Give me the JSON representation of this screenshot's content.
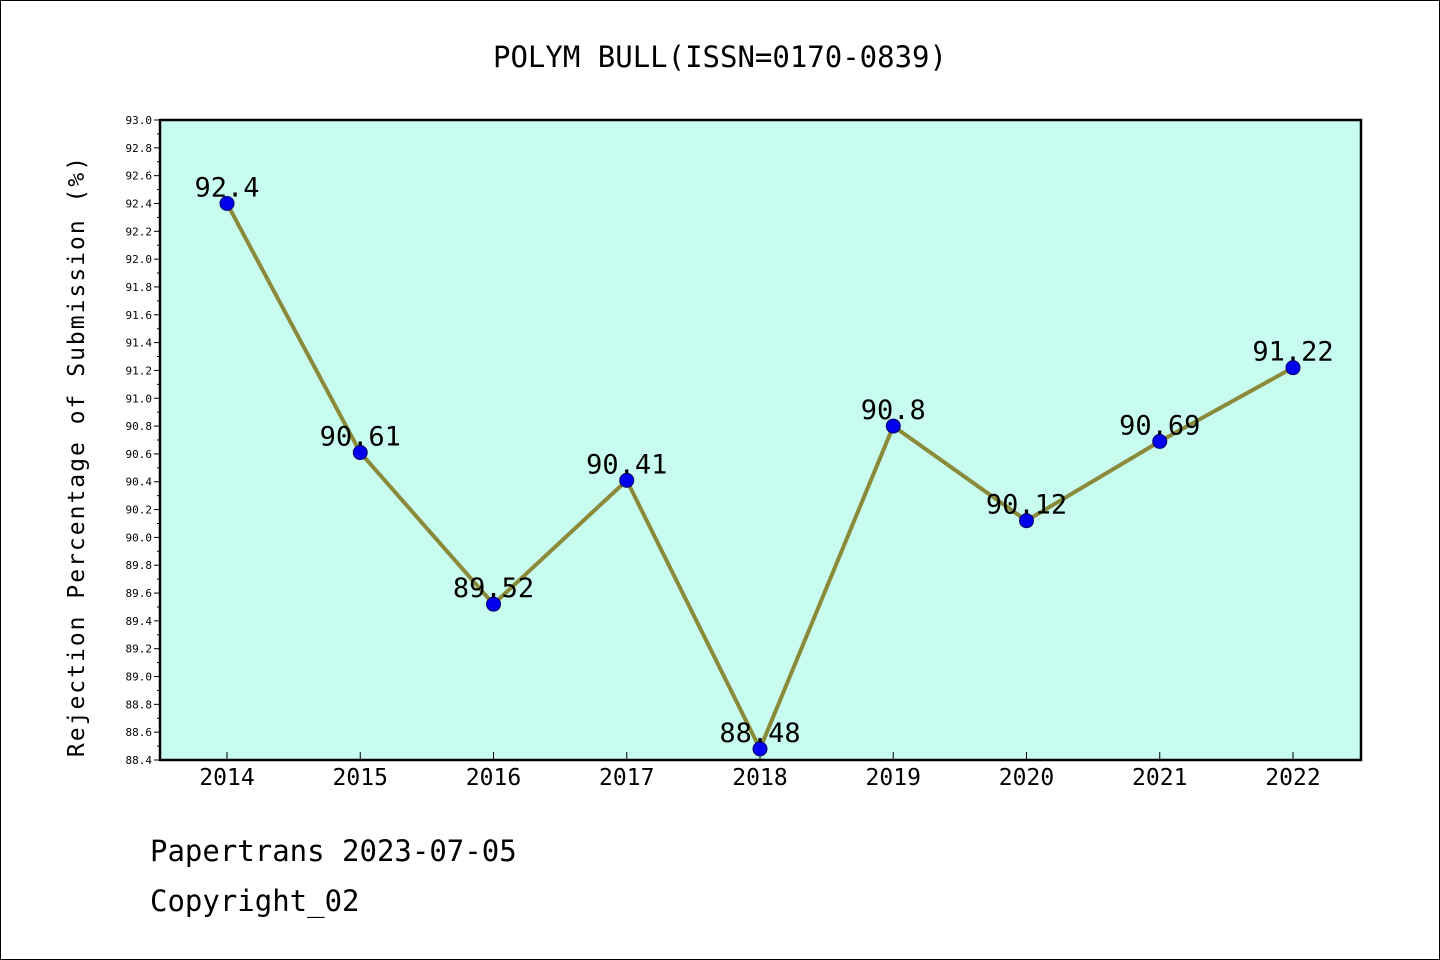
{
  "chart_data": {
    "type": "line",
    "title": "POLYM BULL(ISSN=0170-0839)",
    "xlabel": "",
    "ylabel": "Rejection Percentage of Submission (%)",
    "categories": [
      "2014",
      "2015",
      "2016",
      "2017",
      "2018",
      "2019",
      "2020",
      "2021",
      "2022"
    ],
    "series": [
      {
        "values": [
          92.4,
          90.61,
          89.52,
          90.41,
          88.48,
          90.8,
          90.12,
          90.69,
          91.22
        ],
        "data_labels": [
          "92.4",
          "90.61",
          "89.52",
          "90.41",
          "88.48",
          "90.8",
          "90.12",
          "90.69",
          "91.22"
        ]
      }
    ],
    "ylim": [
      88.4,
      93.0
    ],
    "yticks": [
      "88.4",
      "88.6",
      "88.8",
      "89.0",
      "89.2",
      "89.4",
      "89.6",
      "89.8",
      "90.0",
      "90.2",
      "90.4",
      "90.6",
      "90.8",
      "91.0",
      "91.2",
      "91.4",
      "91.6",
      "91.8",
      "92.0",
      "92.2",
      "92.4",
      "92.6",
      "92.8",
      "93.0"
    ],
    "grid": false,
    "legend": "none",
    "colors": {
      "plot_background": "#c8fcee",
      "line": "#8a8a3a",
      "marker": "#0000ee",
      "axes": "#000000"
    }
  },
  "footer": {
    "line1": "Papertrans 2023-07-05",
    "line2": "Copyright_02"
  }
}
